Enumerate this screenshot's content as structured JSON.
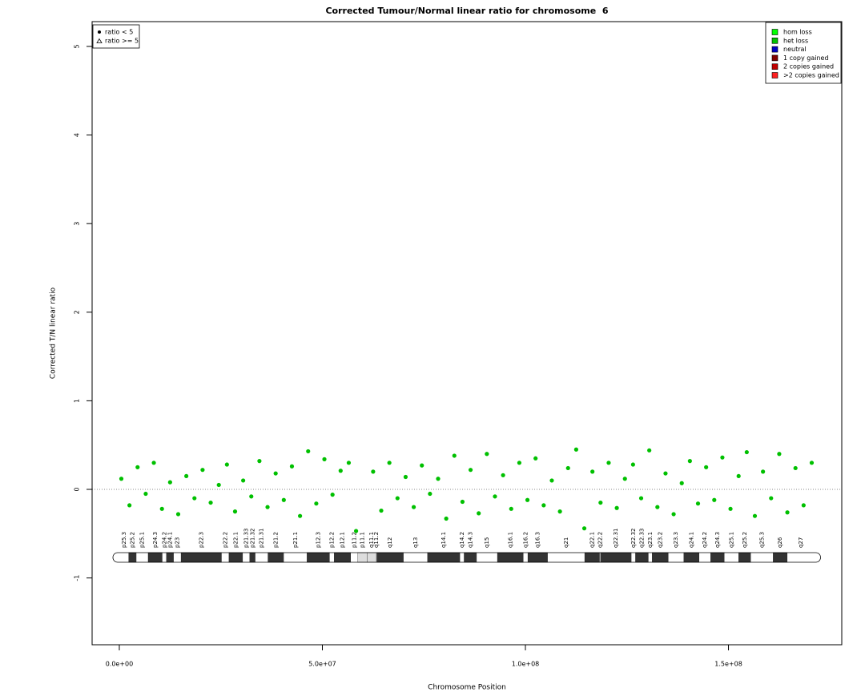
{
  "chart_data": {
    "type": "scatter",
    "title": "Corrected Tumour/Normal linear ratio for chromosome  6",
    "xlabel": "Chromosome Position",
    "ylabel": "Corrected T/N linear ratio",
    "xlim": [
      -6700000,
      177900000
    ],
    "ylim": [
      -1.754,
      5.28
    ],
    "xticks": [
      {
        "value": 0,
        "label": "0.0e+00"
      },
      {
        "value": 50000000,
        "label": "5.0e+07"
      },
      {
        "value": 100000000,
        "label": "1.0e+08"
      },
      {
        "value": 150000000,
        "label": "1.5e+08"
      }
    ],
    "yticks": [
      -1,
      0,
      1,
      2,
      3,
      4,
      5
    ],
    "reference_line": 0,
    "point_color": "#00c000",
    "x": [
      500000,
      2500000,
      4500000,
      6500000,
      8500000,
      10500000,
      12500000,
      14500000,
      16500000,
      18500000,
      20500000,
      22500000,
      24500000,
      26500000,
      28500000,
      30500000,
      32500000,
      34500000,
      36500000,
      38500000,
      40500000,
      42500000,
      44500000,
      46500000,
      48500000,
      50500000,
      52500000,
      54500000,
      56500000,
      58300000,
      62500000,
      64500000,
      66500000,
      68500000,
      70500000,
      72500000,
      74500000,
      76500000,
      78500000,
      80500000,
      82500000,
      84500000,
      86500000,
      88500000,
      90500000,
      92500000,
      94500000,
      96500000,
      98500000,
      100500000,
      102500000,
      104500000,
      106500000,
      108500000,
      110500000,
      112500000,
      114500000,
      116500000,
      118500000,
      120500000,
      122500000,
      124500000,
      126500000,
      128500000,
      130500000,
      132500000,
      134500000,
      136500000,
      138500000,
      140500000,
      142500000,
      144500000,
      146500000,
      148500000,
      150500000,
      152500000,
      154500000,
      156500000,
      158500000,
      160500000,
      162500000,
      164500000,
      166500000,
      168500000,
      170500000
    ],
    "values": [
      0.12,
      -0.18,
      0.25,
      -0.05,
      0.3,
      -0.22,
      0.08,
      -0.28,
      0.15,
      -0.1,
      0.22,
      -0.15,
      0.05,
      0.28,
      -0.25,
      0.1,
      -0.08,
      0.32,
      -0.2,
      0.18,
      -0.12,
      0.26,
      -0.3,
      0.43,
      -0.16,
      0.34,
      -0.06,
      0.21,
      0.3,
      -0.47,
      0.2,
      -0.24,
      0.3,
      -0.1,
      0.14,
      -0.2,
      0.27,
      -0.05,
      0.12,
      -0.33,
      0.38,
      -0.14,
      0.22,
      -0.27,
      0.4,
      -0.08,
      0.16,
      -0.22,
      0.3,
      -0.12,
      0.35,
      -0.18,
      0.1,
      -0.25,
      0.24,
      0.45,
      -0.44,
      0.2,
      -0.15,
      0.3,
      -0.21,
      0.12,
      0.28,
      -0.1,
      0.44,
      -0.2,
      0.18,
      -0.28,
      0.07,
      0.32,
      -0.16,
      0.25,
      -0.12,
      0.36,
      -0.22,
      0.15,
      0.42,
      -0.3,
      0.2,
      -0.1,
      0.4,
      -0.26,
      0.24,
      -0.18,
      0.3
    ],
    "point_legend": [
      {
        "label": "ratio < 5",
        "shape": "circle"
      },
      {
        "label": "ratio >= 5",
        "shape": "triangle"
      }
    ],
    "state_legend": [
      {
        "label": "hom loss",
        "color": "#00ff00"
      },
      {
        "label": "het loss",
        "color": "#00c000"
      },
      {
        "label": "neutral",
        "color": "#0000c0"
      },
      {
        "label": "1 copy gained",
        "color": "#800000"
      },
      {
        "label": "2 copies gained",
        "color": "#c00000"
      },
      {
        "label": ">2 copies gained",
        "color": "#ff2020"
      }
    ],
    "ideogram": [
      {
        "name": "p25.3",
        "start": 0,
        "end": 2300000,
        "color": "#ffffff"
      },
      {
        "name": "p25.2",
        "start": 2300000,
        "end": 4200000,
        "color": "#333333"
      },
      {
        "name": "p25.1",
        "start": 4200000,
        "end": 7100000,
        "color": "#ffffff"
      },
      {
        "name": "p24.3",
        "start": 7100000,
        "end": 10600000,
        "color": "#333333"
      },
      {
        "name": "p24.2",
        "start": 10600000,
        "end": 11600000,
        "color": "#ffffff"
      },
      {
        "name": "p24.1",
        "start": 11600000,
        "end": 13400000,
        "color": "#333333"
      },
      {
        "name": "p23",
        "start": 13400000,
        "end": 15200000,
        "color": "#ffffff"
      },
      {
        "name": "p22.3",
        "start": 15200000,
        "end": 25200000,
        "color": "#333333"
      },
      {
        "name": "p22.2",
        "start": 25200000,
        "end": 27000000,
        "color": "#ffffff"
      },
      {
        "name": "p22.1",
        "start": 27000000,
        "end": 30400000,
        "color": "#333333"
      },
      {
        "name": "p21.33",
        "start": 30400000,
        "end": 32100000,
        "color": "#ffffff"
      },
      {
        "name": "p21.32",
        "start": 32100000,
        "end": 33500000,
        "color": "#333333"
      },
      {
        "name": "p21.31",
        "start": 33500000,
        "end": 36600000,
        "color": "#ffffff"
      },
      {
        "name": "p21.2",
        "start": 36600000,
        "end": 40500000,
        "color": "#333333"
      },
      {
        "name": "p21.1",
        "start": 40500000,
        "end": 46200000,
        "color": "#ffffff"
      },
      {
        "name": "p12.3",
        "start": 46200000,
        "end": 51800000,
        "color": "#333333"
      },
      {
        "name": "p12.2",
        "start": 51800000,
        "end": 52900000,
        "color": "#ffffff"
      },
      {
        "name": "p12.1",
        "start": 52900000,
        "end": 57000000,
        "color": "#333333"
      },
      {
        "name": "p11.2",
        "start": 57000000,
        "end": 58700000,
        "color": "#ffffff"
      },
      {
        "name": "p11.1",
        "start": 58700000,
        "end": 61000000,
        "color": "#dddddd"
      },
      {
        "name": "q11.1",
        "start": 61000000,
        "end": 63300000,
        "color": "#dddddd"
      },
      {
        "name": "q11.2",
        "start": 63300000,
        "end": 63400000,
        "color": "#ffffff"
      },
      {
        "name": "q12",
        "start": 63400000,
        "end": 70000000,
        "color": "#333333"
      },
      {
        "name": "q13",
        "start": 70000000,
        "end": 75900000,
        "color": "#ffffff"
      },
      {
        "name": "q14.1",
        "start": 75900000,
        "end": 83900000,
        "color": "#333333"
      },
      {
        "name": "q14.2",
        "start": 83900000,
        "end": 84900000,
        "color": "#ffffff"
      },
      {
        "name": "q14.3",
        "start": 84900000,
        "end": 88000000,
        "color": "#333333"
      },
      {
        "name": "q15",
        "start": 88000000,
        "end": 93100000,
        "color": "#ffffff"
      },
      {
        "name": "q16.1",
        "start": 93100000,
        "end": 99500000,
        "color": "#333333"
      },
      {
        "name": "q16.2",
        "start": 99500000,
        "end": 100600000,
        "color": "#ffffff"
      },
      {
        "name": "q16.3",
        "start": 100600000,
        "end": 105500000,
        "color": "#333333"
      },
      {
        "name": "q21",
        "start": 105500000,
        "end": 114600000,
        "color": "#ffffff"
      },
      {
        "name": "q22.1",
        "start": 114600000,
        "end": 118300000,
        "color": "#333333"
      },
      {
        "name": "q22.2",
        "start": 118300000,
        "end": 118500000,
        "color": "#ffffff"
      },
      {
        "name": "q22.31",
        "start": 118500000,
        "end": 126100000,
        "color": "#333333"
      },
      {
        "name": "q22.32",
        "start": 126100000,
        "end": 127100000,
        "color": "#ffffff"
      },
      {
        "name": "q22.33",
        "start": 127100000,
        "end": 130300000,
        "color": "#333333"
      },
      {
        "name": "q23.1",
        "start": 130300000,
        "end": 131200000,
        "color": "#ffffff"
      },
      {
        "name": "q23.2",
        "start": 131200000,
        "end": 135200000,
        "color": "#333333"
      },
      {
        "name": "q23.3",
        "start": 135200000,
        "end": 139000000,
        "color": "#ffffff"
      },
      {
        "name": "q24.1",
        "start": 139000000,
        "end": 142800000,
        "color": "#333333"
      },
      {
        "name": "q24.2",
        "start": 142800000,
        "end": 145600000,
        "color": "#ffffff"
      },
      {
        "name": "q24.3",
        "start": 145600000,
        "end": 149000000,
        "color": "#333333"
      },
      {
        "name": "q25.1",
        "start": 149000000,
        "end": 152500000,
        "color": "#ffffff"
      },
      {
        "name": "q25.2",
        "start": 152500000,
        "end": 155500000,
        "color": "#333333"
      },
      {
        "name": "q25.3",
        "start": 155500000,
        "end": 161000000,
        "color": "#ffffff"
      },
      {
        "name": "q26",
        "start": 161000000,
        "end": 164500000,
        "color": "#333333"
      },
      {
        "name": "q27",
        "start": 164500000,
        "end": 171100000,
        "color": "#ffffff"
      }
    ]
  }
}
